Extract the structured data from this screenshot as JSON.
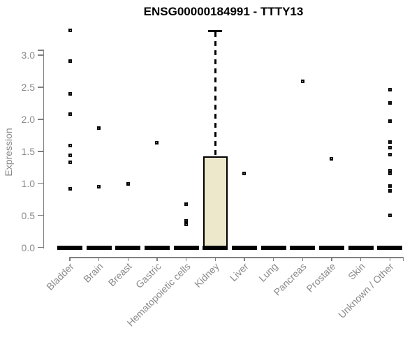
{
  "title": "ENSG00000184991 - TTTY13",
  "chart_data": {
    "type": "boxplot",
    "title": "ENSG00000184991 - TTTY13",
    "ylabel": "Expression",
    "xlabel": "",
    "ylim": [
      0,
      3.4
    ],
    "y_ticks": [
      0.0,
      0.5,
      1.0,
      1.5,
      2.0,
      2.5,
      3.0
    ],
    "grid": false,
    "legend": "none",
    "categories": [
      "Bladder",
      "Brain",
      "Breast",
      "Gastric",
      "Hematopoietic cells",
      "Kidney",
      "Liver",
      "Lung",
      "Pancreas",
      "Prostate",
      "Skin",
      "Unknown / Other"
    ],
    "boxes": [
      {
        "category": "Bladder",
        "median": 0,
        "q1": 0,
        "q3": 0,
        "whisker_low": 0,
        "whisker_high": 0,
        "outliers": [
          3.39,
          2.91,
          2.4,
          2.08,
          1.59,
          1.44,
          1.33,
          0.91
        ]
      },
      {
        "category": "Brain",
        "median": 0,
        "q1": 0,
        "q3": 0,
        "whisker_low": 0,
        "whisker_high": 0,
        "outliers": [
          1.86,
          0.95
        ]
      },
      {
        "category": "Breast",
        "median": 0,
        "q1": 0,
        "q3": 0,
        "whisker_low": 0,
        "whisker_high": 0,
        "outliers": [
          0.99
        ]
      },
      {
        "category": "Gastric",
        "median": 0,
        "q1": 0,
        "q3": 0,
        "whisker_low": 0,
        "whisker_high": 0,
        "outliers": [
          1.63
        ]
      },
      {
        "category": "Hematopoietic cells",
        "median": 0,
        "q1": 0,
        "q3": 0,
        "whisker_low": 0,
        "whisker_high": 0,
        "outliers": [
          0.68,
          0.41,
          0.36
        ]
      },
      {
        "category": "Kidney",
        "median": 0,
        "q1": 0,
        "q3": 1.42,
        "whisker_low": 0,
        "whisker_high": 3.38,
        "outliers": []
      },
      {
        "category": "Liver",
        "median": 0,
        "q1": 0,
        "q3": 0,
        "whisker_low": 0,
        "whisker_high": 0,
        "outliers": [
          1.15
        ]
      },
      {
        "category": "Lung",
        "median": 0,
        "q1": 0,
        "q3": 0,
        "whisker_low": 0,
        "whisker_high": 0,
        "outliers": []
      },
      {
        "category": "Pancreas",
        "median": 0,
        "q1": 0,
        "q3": 0,
        "whisker_low": 0,
        "whisker_high": 0,
        "outliers": [
          2.59
        ]
      },
      {
        "category": "Prostate",
        "median": 0,
        "q1": 0,
        "q3": 0,
        "whisker_low": 0,
        "whisker_high": 0,
        "outliers": [
          1.38
        ]
      },
      {
        "category": "Skin",
        "median": 0,
        "q1": 0,
        "q3": 0,
        "whisker_low": 0,
        "whisker_high": 0,
        "outliers": []
      },
      {
        "category": "Unknown / Other",
        "median": 0,
        "q1": 0,
        "q3": 0,
        "whisker_low": 0,
        "whisker_high": 0,
        "outliers": [
          2.46,
          2.25,
          1.97,
          1.65,
          1.56,
          1.45,
          1.2,
          1.16,
          0.96,
          0.88,
          0.5
        ]
      }
    ],
    "colors": {
      "box_fill": "#EDE7CC",
      "box_border": "#000000",
      "outlier": "#000000",
      "median_bar": "#000000",
      "axis": "#808080",
      "tick_label": "#8b8b90",
      "title": "#000000"
    }
  }
}
